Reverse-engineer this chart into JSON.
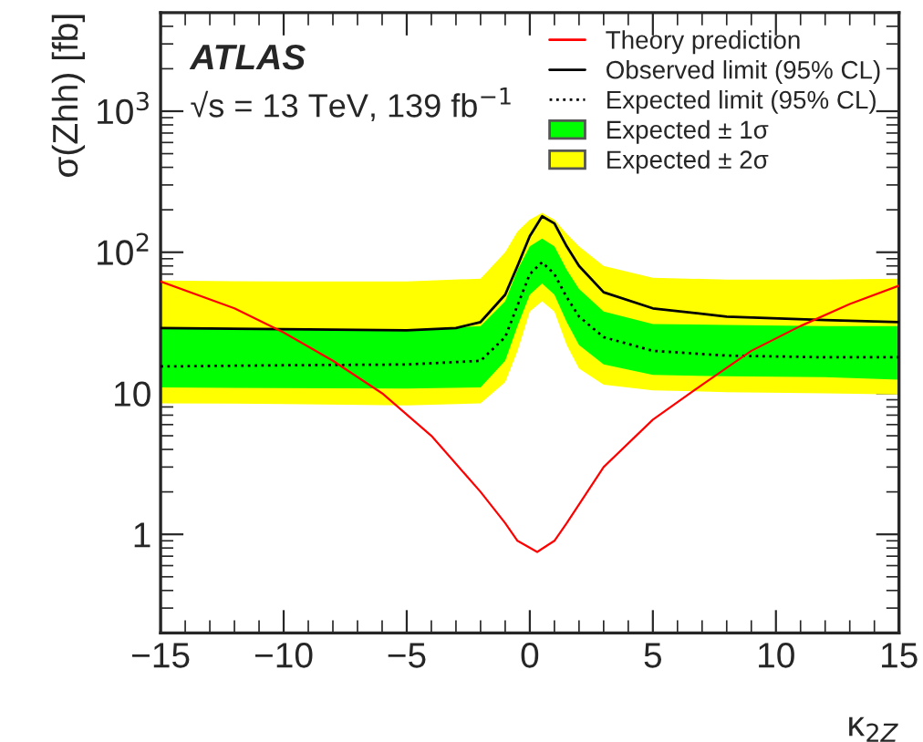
{
  "chart_data": {
    "type": "line",
    "xlabel": "κ$_{2Z}$",
    "ylabel": "σ(Zhh) [fb]",
    "annotations": [
      "ATLAS",
      "√s = 13 TeV, 139 fb$^{−1}$"
    ],
    "log": "y",
    "xlim": [
      -15,
      15
    ],
    "xticks": [
      {
        "value": -15,
        "label": "−15"
      },
      {
        "value": -10,
        "label": "−10"
      },
      {
        "value": -5,
        "label": "−5"
      },
      0,
      5,
      10,
      15
    ],
    "ylim": [
      0.2,
      5000
    ],
    "yticks": [
      1,
      10,
      {
        "value": 100,
        "label": "10$^{2}$"
      },
      {
        "value": 1000,
        "label": "10$^{3}$"
      }
    ],
    "legend": "top right",
    "grid": false,
    "series": [
      {
        "name": "Expected ± 2σ",
        "line_style": "dotted",
        "color": "#ffff00",
        "x": [
          -15,
          -10,
          -5,
          -2,
          -1,
          -0.5,
          0,
          0.5,
          1,
          1.5,
          2,
          3,
          5,
          8,
          12,
          15
        ],
        "values": [
          null,
          null,
          null,
          null,
          null,
          null,
          null,
          null,
          null,
          null,
          null,
          null,
          null,
          null,
          null,
          null
        ],
        "lower": [
          8.5,
          8.4,
          8.2,
          8.5,
          12,
          20,
          38,
          45,
          38,
          22,
          15,
          11.5,
          10.5,
          10.2,
          10,
          9.8
        ],
        "upper": [
          63,
          62,
          62,
          65,
          100,
          140,
          170,
          190,
          170,
          135,
          110,
          80,
          66,
          64,
          64,
          65
        ]
      },
      {
        "name": "Expected ± 1σ",
        "line_style": "dotted",
        "color": "#00ff00",
        "x": [
          -15,
          -10,
          -5,
          -2,
          -1,
          -0.5,
          0,
          0.5,
          1,
          1.5,
          2,
          3,
          5,
          8,
          12,
          15
        ],
        "values": [
          null,
          null,
          null,
          null,
          null,
          null,
          null,
          null,
          null,
          null,
          null,
          null,
          null,
          null,
          null,
          null
        ],
        "lower": [
          11,
          10.9,
          10.8,
          11,
          17,
          30,
          50,
          60,
          50,
          32,
          22,
          16,
          13.5,
          13.2,
          13,
          12.5
        ],
        "upper": [
          29,
          28.5,
          28,
          30,
          45,
          75,
          110,
          125,
          110,
          75,
          55,
          38,
          31,
          30.5,
          30,
          30
        ]
      },
      {
        "name": "Expected limit (95% CL)",
        "line_style": "dotted",
        "color": "#000000",
        "x": [
          -15,
          -10,
          -5,
          -2,
          -1,
          -0.5,
          0,
          0.5,
          1,
          1.5,
          2,
          3,
          5,
          8,
          12,
          15
        ],
        "values": [
          15.5,
          15.8,
          16,
          17,
          25,
          42,
          70,
          85,
          70,
          48,
          35,
          25,
          20,
          18.5,
          18,
          18
        ]
      },
      {
        "name": "Observed limit (95% CL)",
        "line_style": "solid",
        "color": "#000000",
        "x": [
          -15,
          -10,
          -5,
          -3,
          -2,
          -1,
          -0.5,
          0,
          0.5,
          1,
          1.5,
          2,
          3,
          5,
          8,
          12,
          15
        ],
        "values": [
          29,
          28.5,
          28,
          29,
          32,
          50,
          80,
          130,
          180,
          160,
          110,
          80,
          52,
          40,
          35,
          33,
          32
        ]
      },
      {
        "name": "Theory prediction",
        "line_style": "solid",
        "color": "#ff0000",
        "x": [
          -15,
          -12,
          -10,
          -8,
          -6,
          -4,
          -2,
          -1,
          -0.5,
          0.3,
          1,
          1.5,
          3,
          5,
          7,
          9,
          11,
          13,
          15
        ],
        "values": [
          62,
          40,
          27,
          17,
          10,
          5,
          2,
          1.2,
          0.9,
          0.75,
          0.9,
          1.2,
          3,
          6.5,
          11.5,
          20,
          30,
          43,
          58
        ]
      }
    ]
  }
}
